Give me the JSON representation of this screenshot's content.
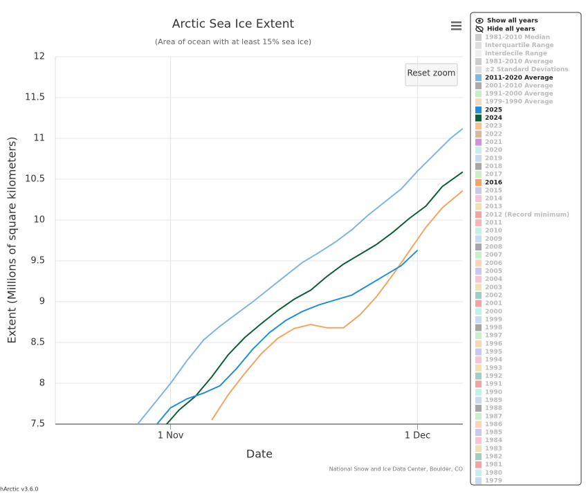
{
  "chart_data": {
    "type": "line",
    "title": "Arctic Sea Ice Extent",
    "subtitle": "(Area of ocean with at least 15% sea ice)",
    "x_label": "Date",
    "y_label": "Extent (Millions of square kilometers)",
    "credit": "National Snow and Ice Data Center, Boulder, CO",
    "reset_zoom": "Reset zoom",
    "xlim": [
      291,
      340.5
    ],
    "xticks": [
      {
        "value": 305,
        "label": "1 Nov"
      },
      {
        "value": 335,
        "label": "1 Dec"
      }
    ],
    "ylim": [
      7.5,
      12
    ],
    "yticks": [
      7.5,
      8,
      8.5,
      9,
      9.5,
      10,
      10.5,
      11,
      11.5,
      12
    ],
    "grid": true,
    "series": [
      {
        "name": "2011-2020 Average",
        "color": "#7cb5e6",
        "x": [
          301,
          303,
          305,
          307,
          309,
          311,
          313,
          315,
          317,
          319,
          321,
          323,
          325,
          327,
          329,
          331,
          333,
          335,
          337,
          339,
          340.5
        ],
        "values": [
          7.5,
          7.75,
          8.0,
          8.28,
          8.53,
          8.7,
          8.85,
          9.0,
          9.16,
          9.32,
          9.48,
          9.6,
          9.73,
          9.88,
          10.06,
          10.22,
          10.38,
          10.6,
          10.8,
          11.0,
          11.12
        ]
      },
      {
        "name": "2016",
        "color": "#f4a460",
        "x": [
          310,
          312,
          314,
          316,
          318,
          320,
          322,
          324,
          326,
          328,
          330,
          332,
          334,
          336,
          338,
          340.5
        ],
        "values": [
          7.55,
          7.86,
          8.12,
          8.36,
          8.55,
          8.67,
          8.72,
          8.68,
          8.68,
          8.84,
          9.06,
          9.33,
          9.62,
          9.91,
          10.15,
          10.36
        ]
      },
      {
        "name": "2024",
        "color": "#0b5e34",
        "x": [
          304,
          306,
          308,
          310,
          312,
          314,
          316,
          318,
          320,
          322,
          324,
          326,
          328,
          330,
          332,
          334,
          336,
          338,
          340.5
        ],
        "values": [
          7.44,
          7.67,
          7.84,
          8.08,
          8.35,
          8.56,
          8.73,
          8.89,
          9.03,
          9.14,
          9.31,
          9.46,
          9.58,
          9.7,
          9.85,
          10.02,
          10.17,
          10.41,
          10.59
        ]
      },
      {
        "name": "2025",
        "color": "#1f8fdb",
        "x": [
          303,
          305,
          307,
          309,
          311,
          313,
          315,
          317,
          319,
          321,
          323,
          325,
          327,
          329,
          331,
          333,
          335
        ],
        "values": [
          7.46,
          7.7,
          7.81,
          7.88,
          7.97,
          8.18,
          8.42,
          8.62,
          8.77,
          8.88,
          8.96,
          9.02,
          9.08,
          9.2,
          9.32,
          9.44,
          9.63
        ]
      }
    ],
    "legend_controls": [
      "Show all years",
      "Hide all years"
    ],
    "legend": [
      {
        "name": "1981-2010 Median",
        "color": "#cccccc",
        "active": false
      },
      {
        "name": "Interquartile Range",
        "color": "#dddddd",
        "active": false
      },
      {
        "name": "Interdecile Range",
        "color": "#eeeeee",
        "active": false
      },
      {
        "name": "1981-2010 Average",
        "color": "#cccccc",
        "active": false
      },
      {
        "name": "±2 Standard Deviations",
        "color": "#dddddd",
        "active": false
      },
      {
        "name": "2011-2020 Average",
        "color": "#7cb5e6",
        "active": true
      },
      {
        "name": "2001-2010 Average",
        "color": "#aaaaaa",
        "active": false
      },
      {
        "name": "1991-2000 Average",
        "color": "#c6f0c6",
        "active": false
      },
      {
        "name": "1979-1990 Average",
        "color": "#fcd5b5",
        "active": false
      },
      {
        "name": "2025",
        "color": "#1f8fdb",
        "active": true
      },
      {
        "name": "2024",
        "color": "#0b5e34",
        "active": true
      },
      {
        "name": "2023",
        "color": "#f5c08a",
        "active": false
      },
      {
        "name": "2022",
        "color": "#d9b99b",
        "active": false
      },
      {
        "name": "2021",
        "color": "#d98ed9",
        "active": false
      },
      {
        "name": "2020",
        "color": "#c2f0ef",
        "active": false
      },
      {
        "name": "2019",
        "color": "#c6dbef",
        "active": false
      },
      {
        "name": "2018",
        "color": "#a6a6a6",
        "active": false
      },
      {
        "name": "2017",
        "color": "#c7f0c7",
        "active": false
      },
      {
        "name": "2016",
        "color": "#f4a460",
        "active": true
      },
      {
        "name": "2015",
        "color": "#c9c9f0",
        "active": false
      },
      {
        "name": "2014",
        "color": "#f9c3d3",
        "active": false
      },
      {
        "name": "2013",
        "color": "#f0e2b0",
        "active": false
      },
      {
        "name": "2012 (Record minimum)",
        "color": "#f4a3a3",
        "active": false
      },
      {
        "name": "2011",
        "color": "#f7b7b7",
        "active": false
      },
      {
        "name": "2010",
        "color": "#c2f0ef",
        "active": false
      },
      {
        "name": "2009",
        "color": "#c6dbef",
        "active": false
      },
      {
        "name": "2008",
        "color": "#a6a6a6",
        "active": false
      },
      {
        "name": "2007",
        "color": "#c7f0c7",
        "active": false
      },
      {
        "name": "2006",
        "color": "#fcd5b5",
        "active": false
      },
      {
        "name": "2005",
        "color": "#c9c9f0",
        "active": false
      },
      {
        "name": "2004",
        "color": "#f9c3d3",
        "active": false
      },
      {
        "name": "2003",
        "color": "#f0e2b0",
        "active": false
      },
      {
        "name": "2002",
        "color": "#9fcfc4",
        "active": false
      },
      {
        "name": "2001",
        "color": "#f4a3a3",
        "active": false
      },
      {
        "name": "2000",
        "color": "#c2f0ef",
        "active": false
      },
      {
        "name": "1999",
        "color": "#c6dbef",
        "active": false
      },
      {
        "name": "1998",
        "color": "#a6a6a6",
        "active": false
      },
      {
        "name": "1997",
        "color": "#c7f0c7",
        "active": false
      },
      {
        "name": "1996",
        "color": "#fcd5b5",
        "active": false
      },
      {
        "name": "1995",
        "color": "#c9c9f0",
        "active": false
      },
      {
        "name": "1994",
        "color": "#f9c3d3",
        "active": false
      },
      {
        "name": "1993",
        "color": "#f0e2b0",
        "active": false
      },
      {
        "name": "1992",
        "color": "#9fcfc4",
        "active": false
      },
      {
        "name": "1991",
        "color": "#f4a3a3",
        "active": false
      },
      {
        "name": "1990",
        "color": "#c2f0ef",
        "active": false
      },
      {
        "name": "1989",
        "color": "#c6dbef",
        "active": false
      },
      {
        "name": "1988",
        "color": "#a6a6a6",
        "active": false
      },
      {
        "name": "1987",
        "color": "#c7f0c7",
        "active": false
      },
      {
        "name": "1986",
        "color": "#fcd5b5",
        "active": false
      },
      {
        "name": "1985",
        "color": "#c9c9f0",
        "active": false
      },
      {
        "name": "1984",
        "color": "#f9c3d3",
        "active": false
      },
      {
        "name": "1983",
        "color": "#f0e2b0",
        "active": false
      },
      {
        "name": "1982",
        "color": "#9fcfc4",
        "active": false
      },
      {
        "name": "1981",
        "color": "#f4a3a3",
        "active": false
      },
      {
        "name": "1980",
        "color": "#c2f0ef",
        "active": false
      },
      {
        "name": "1979",
        "color": "#c6dbef",
        "active": false
      }
    ]
  },
  "footer": {
    "version": "hArctic v3.6.0"
  }
}
